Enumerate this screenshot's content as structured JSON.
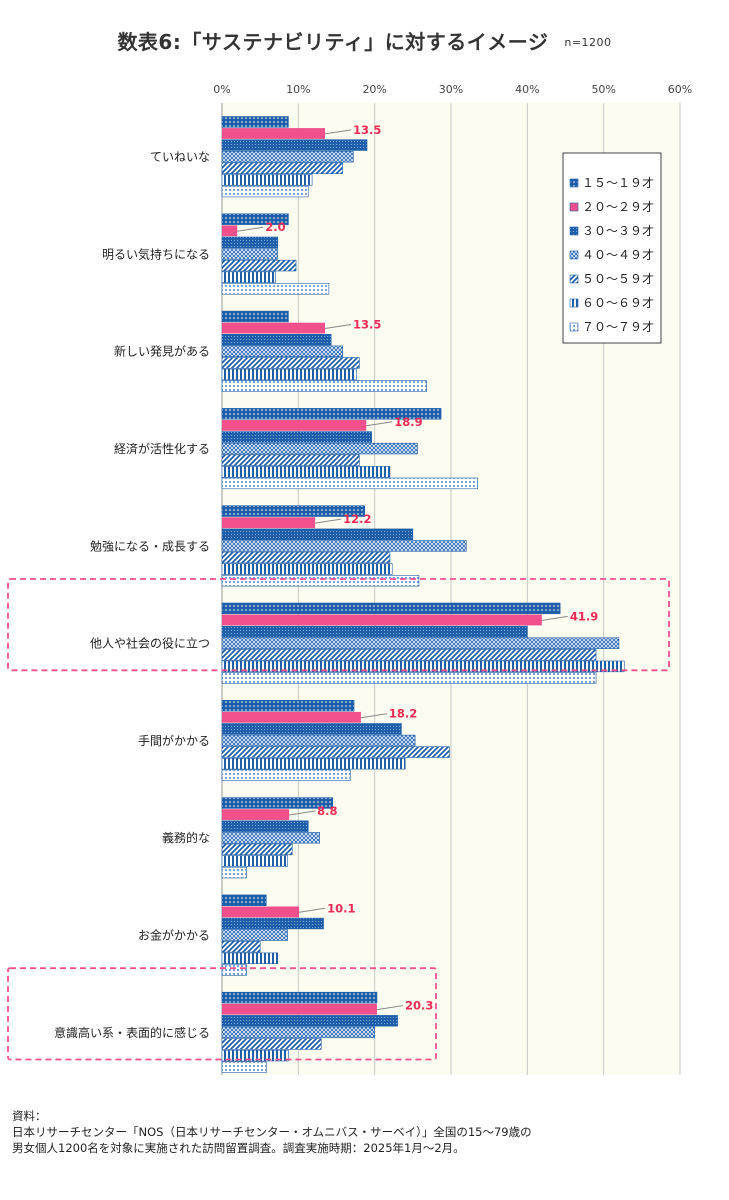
{
  "title": "数表6:「サステナビリティ」に対するイメージ",
  "sample": "n=1200",
  "source": {
    "line1": "資料：",
    "line2": "日本リサーチセンター「NOS（日本リサーチセンター・オムニバス・サーベイ）」全国の15～79歳の",
    "line3": "男女個人1200名を対象に実施された訪問留置調査。調査実施時期：2025年1月～2月。"
  },
  "colors": {
    "blue": "#1f5faa",
    "pink": "#f0508c",
    "label_red": "#ee2a55",
    "highlight": "#f0508c",
    "plot_bg": "#fdfcf0",
    "grid": "#c8c8c8"
  },
  "chart_data": {
    "type": "bar",
    "orientation": "horizontal",
    "xlim": [
      0,
      60
    ],
    "xticks": [
      "0%",
      "10%",
      "20%",
      "30%",
      "40%",
      "50%",
      "60%"
    ],
    "grid": true,
    "legend_position": "top-right",
    "categories": [
      "ていねいな",
      "明るい気持ちになる",
      "新しい発見がある",
      "経済が活性化する",
      "勉強になる・成長する",
      "他人や社会の役に立つ",
      "手間がかかる",
      "義務的な",
      "お金がかかる",
      "意識高い系・表面的に感じる"
    ],
    "highlighted_categories": [
      "他人や社会の役に立つ",
      "意識高い系・表面的に感じる"
    ],
    "series": [
      {
        "name": "１５～１９才",
        "pattern": "dots-blue",
        "values": [
          8.7,
          8.7,
          8.7,
          28.7,
          18.7,
          44.3,
          17.3,
          14.5,
          5.8,
          20.3
        ]
      },
      {
        "name": "２０～２９才",
        "pattern": "solid-pink",
        "values": [
          13.5,
          2.0,
          13.5,
          18.9,
          12.2,
          41.9,
          18.2,
          8.8,
          10.1,
          20.3
        ]
      },
      {
        "name": "３０～３９才",
        "pattern": "fine-blue",
        "values": [
          19.0,
          7.3,
          14.3,
          19.6,
          25.0,
          40.0,
          23.5,
          11.3,
          13.3,
          23.0
        ]
      },
      {
        "name": "４０～４９才",
        "pattern": "crosshatch-blue",
        "values": [
          17.2,
          7.3,
          15.8,
          25.6,
          32.0,
          52.0,
          25.3,
          12.8,
          8.6,
          20.0
        ]
      },
      {
        "name": "５０～５９才",
        "pattern": "diag-blue",
        "values": [
          15.8,
          9.7,
          18.0,
          18.0,
          22.0,
          49.0,
          29.8,
          9.2,
          5.0,
          13.0
        ]
      },
      {
        "name": "６０～６９才",
        "pattern": "vstripe-blue",
        "values": [
          11.8,
          7.0,
          17.6,
          22.0,
          22.3,
          52.7,
          24.0,
          8.6,
          7.3,
          8.7
        ]
      },
      {
        "name": "７０～７９才",
        "pattern": "lightdots-blue",
        "values": [
          11.3,
          14.0,
          26.8,
          33.5,
          25.8,
          49.0,
          16.8,
          3.2,
          3.2,
          5.8
        ]
      }
    ],
    "data_labels_series": "２０～２９才",
    "data_labels": [
      "13.5",
      "2.0",
      "13.5",
      "18.9",
      "12.2",
      "41.9",
      "18.2",
      "8.8",
      "10.1",
      "20.3"
    ]
  }
}
